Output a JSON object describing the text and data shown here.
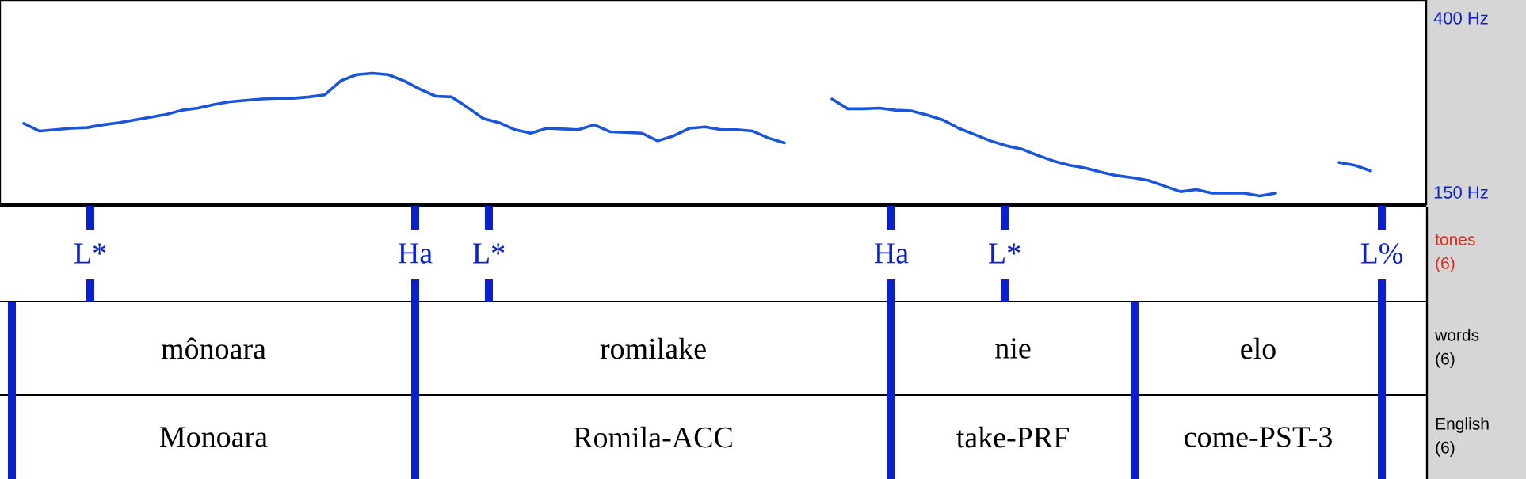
{
  "chart_data": {
    "type": "line",
    "categories": [
      null,
      null,
      null,
      null,
      null,
      null,
      null,
      null,
      null,
      null,
      null,
      null,
      null,
      null,
      null,
      null,
      null,
      null,
      null,
      null,
      null,
      null,
      null,
      null,
      null,
      null,
      null,
      null,
      null,
      null,
      null,
      null,
      null,
      null,
      null,
      null,
      null,
      null,
      null,
      null,
      null,
      null,
      null,
      null,
      null,
      null,
      null,
      null,
      null,
      null,
      null,
      null,
      null,
      null,
      null,
      null,
      null,
      null,
      null,
      null,
      null,
      null,
      null,
      null,
      null,
      null,
      null,
      null,
      null,
      null,
      null,
      null,
      null,
      null,
      null,
      null,
      null,
      null,
      null,
      null,
      null,
      null,
      null,
      null,
      null,
      null,
      null,
      null,
      null,
      null
    ],
    "series": [
      {
        "color": "#1a55d8",
        "values": [
          null,
          249,
          238,
          240,
          242,
          243,
          247,
          250,
          254,
          258,
          262,
          268,
          271,
          276,
          280,
          282,
          284,
          285,
          285,
          287,
          290,
          310,
          319,
          321,
          319,
          310,
          298,
          288,
          287,
          272,
          256,
          250,
          240,
          235,
          242,
          241,
          240,
          247,
          237,
          236,
          235,
          224,
          231,
          242,
          244,
          240,
          240,
          238,
          228,
          221,
          null,
          null,
          null,
          null,
          null,
          null,
          null,
          null,
          null,
          null,
          null,
          null,
          null,
          null,
          null,
          null,
          null,
          null,
          null,
          null,
          null,
          null,
          null,
          null,
          null,
          null,
          null,
          null,
          null,
          null,
          null,
          null,
          null,
          null,
          null,
          null,
          null,
          null,
          null,
          null
        ]
      },
      {
        "color": "#1a55d8",
        "values": [
          null,
          null,
          null,
          null,
          null,
          null,
          null,
          null,
          null,
          null,
          null,
          null,
          null,
          null,
          null,
          null,
          null,
          null,
          null,
          null,
          null,
          null,
          null,
          null,
          null,
          null,
          null,
          null,
          null,
          null,
          null,
          null,
          null,
          null,
          null,
          null,
          null,
          null,
          null,
          null,
          null,
          null,
          null,
          null,
          null,
          null,
          null,
          null,
          null,
          null,
          null,
          null,
          284,
          270,
          270,
          271,
          268,
          267,
          261,
          254,
          242,
          233,
          224,
          217,
          212,
          203,
          195,
          189,
          185,
          179,
          174,
          171,
          167,
          159,
          151,
          154,
          149,
          149,
          149,
          145,
          149,
          null,
          null,
          null,
          null,
          null,
          null,
          null,
          null,
          null
        ]
      },
      {
        "color": "#1a55d8",
        "values": [
          null,
          null,
          null,
          null,
          null,
          null,
          null,
          null,
          null,
          null,
          null,
          null,
          null,
          null,
          null,
          null,
          null,
          null,
          null,
          null,
          null,
          null,
          null,
          null,
          null,
          null,
          null,
          null,
          null,
          null,
          null,
          null,
          null,
          null,
          null,
          null,
          null,
          null,
          null,
          null,
          null,
          null,
          null,
          null,
          null,
          null,
          null,
          null,
          null,
          null,
          null,
          null,
          null,
          null,
          null,
          null,
          null,
          null,
          null,
          null,
          null,
          null,
          null,
          null,
          null,
          null,
          null,
          null,
          null,
          null,
          null,
          null,
          null,
          null,
          null,
          null,
          null,
          null,
          null,
          null,
          null,
          null,
          null,
          null,
          193,
          189,
          181,
          null,
          null,
          null
        ]
      }
    ],
    "ylim": [
      133,
      426
    ],
    "yticks": [
      {
        "value": 400,
        "label": "400 Hz"
      },
      {
        "value": 150,
        "label": "150 Hz"
      }
    ],
    "tick_labels": "y",
    "grid": false,
    "annotations": [
      "L*",
      "Ha",
      "L*",
      "Ha",
      "L*",
      "L%",
      "tones (6)",
      "mônoara",
      "romilake",
      "nie",
      "elo",
      "words (6)",
      "Monoara",
      "Romila-ACC",
      "take-PRF",
      "come-PST-3",
      "English (6)"
    ]
  }
}
